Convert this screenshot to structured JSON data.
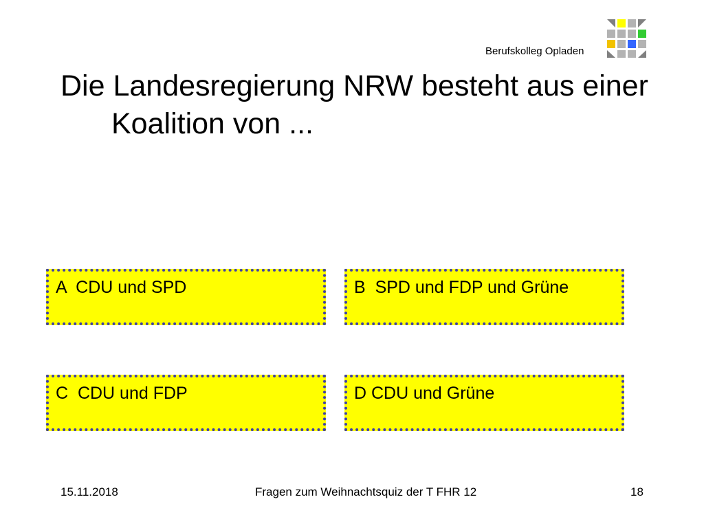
{
  "header": {
    "brand": "Berufskolleg Opladen",
    "logo_colors": {
      "gray": "#b3b3b3",
      "dark_gray": "#808080",
      "yellow": "#ffff00",
      "gold": "#f2c200",
      "green": "#33cc33",
      "blue": "#3366ff"
    }
  },
  "slide": {
    "title": "Die Landesregierung NRW besteht aus einer Koalition von  ...",
    "answers": [
      {
        "label": "A  CDU und SPD"
      },
      {
        "label": "B  SPD und FDP und Grüne"
      },
      {
        "label": "C  CDU und FDP"
      },
      {
        "label": "D CDU und Grüne"
      }
    ],
    "answer_colors": {
      "fill": "#ffff00",
      "border": "#3f3fa8"
    }
  },
  "footer": {
    "date": "15.11.2018",
    "subject": "Fragen zum Weihnachtsquiz der T FHR 12",
    "page": "18"
  }
}
